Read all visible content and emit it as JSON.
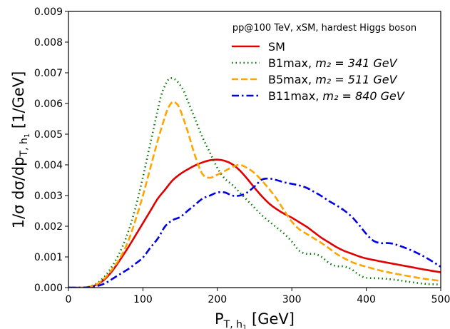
{
  "chart_data": {
    "type": "line",
    "title": "",
    "legend_title": "pp@100 TeV, xSM, hardest Higgs boson",
    "legend_position": "top-right",
    "xlabel": "P_{T,h_1} [GeV]",
    "ylabel": "1/σ dσ/dp_{T,h_1} [1/GeV]",
    "xlim": [
      0,
      500
    ],
    "ylim": [
      0,
      0.009
    ],
    "xticks": [
      0,
      100,
      200,
      300,
      400,
      500
    ],
    "xtick_labels": [
      "0",
      "100",
      "200",
      "300",
      "400",
      "500"
    ],
    "yticks": [
      0,
      0.001,
      0.002,
      0.003,
      0.004,
      0.005,
      0.006,
      0.007,
      0.008,
      0.009
    ],
    "ytick_labels": [
      "0.000",
      "0.001",
      "0.002",
      "0.003",
      "0.004",
      "0.005",
      "0.006",
      "0.007",
      "0.008",
      "0.009"
    ],
    "grid": false,
    "series": [
      {
        "name": "SM",
        "color": "#e00000",
        "dash": "solid",
        "x": [
          0,
          20,
          30,
          40,
          50,
          60,
          70,
          80,
          90,
          100,
          110,
          120,
          130,
          140,
          150,
          160,
          170,
          180,
          190,
          200,
          210,
          220,
          230,
          240,
          250,
          260,
          270,
          280,
          290,
          300,
          310,
          320,
          330,
          340,
          350,
          360,
          370,
          380,
          390,
          400,
          420,
          440,
          460,
          480,
          500
        ],
        "y": [
          0,
          0,
          3e-05,
          0.00012,
          0.0003,
          0.00058,
          0.00093,
          0.0013,
          0.0017,
          0.0021,
          0.0025,
          0.0029,
          0.0032,
          0.0035,
          0.0037,
          0.00385,
          0.00398,
          0.00408,
          0.00415,
          0.00417,
          0.00413,
          0.00402,
          0.00382,
          0.00355,
          0.00325,
          0.00297,
          0.00273,
          0.00255,
          0.0024,
          0.00228,
          0.00213,
          0.00198,
          0.0018,
          0.00162,
          0.00147,
          0.00132,
          0.0012,
          0.00111,
          0.00102,
          0.00095,
          0.00085,
          0.00076,
          0.00067,
          0.00058,
          0.0005
        ]
      },
      {
        "name_prefix": "B1max, ",
        "name_math": "m₂ = 341 GeV",
        "color": "#007500",
        "dash": "dotted",
        "x": [
          0,
          20,
          30,
          40,
          50,
          60,
          70,
          80,
          90,
          100,
          110,
          120,
          125,
          130,
          135,
          140,
          145,
          150,
          155,
          160,
          170,
          180,
          190,
          200,
          210,
          220,
          230,
          240,
          250,
          260,
          270,
          280,
          290,
          300,
          310,
          320,
          330,
          340,
          350,
          360,
          370,
          380,
          390,
          400,
          420,
          440,
          460,
          480,
          500
        ],
        "y": [
          0,
          0,
          5e-05,
          0.00017,
          0.0004,
          0.00075,
          0.0012,
          0.0018,
          0.0026,
          0.0036,
          0.0047,
          0.0058,
          0.0063,
          0.0066,
          0.0068,
          0.00682,
          0.00675,
          0.0066,
          0.0064,
          0.0061,
          0.0055,
          0.0049,
          0.0044,
          0.0039,
          0.00355,
          0.00335,
          0.0031,
          0.00285,
          0.0026,
          0.00235,
          0.00215,
          0.00195,
          0.00175,
          0.0015,
          0.0012,
          0.0011,
          0.0011,
          0.001,
          0.0008,
          0.0007,
          0.00069,
          0.0006,
          0.00042,
          0.00032,
          0.0003,
          0.00025,
          0.00018,
          0.00012,
          0.0001
        ]
      },
      {
        "name_prefix": "B5max, ",
        "name_math": "m₂ = 511 GeV",
        "color": "#ffa500",
        "dash": "dashed",
        "x": [
          0,
          20,
          30,
          40,
          50,
          60,
          70,
          80,
          90,
          100,
          110,
          120,
          130,
          135,
          140,
          145,
          150,
          160,
          170,
          180,
          190,
          200,
          210,
          220,
          230,
          240,
          250,
          260,
          270,
          280,
          290,
          300,
          310,
          320,
          330,
          340,
          350,
          360,
          370,
          380,
          390,
          400,
          420,
          440,
          460,
          480,
          500
        ],
        "y": [
          0,
          0,
          4e-05,
          0.00014,
          0.00034,
          0.00064,
          0.001,
          0.0015,
          0.0022,
          0.003,
          0.0039,
          0.0048,
          0.0056,
          0.0059,
          0.00605,
          0.006,
          0.0058,
          0.0051,
          0.0043,
          0.0037,
          0.00358,
          0.00368,
          0.0038,
          0.00393,
          0.004,
          0.0039,
          0.00373,
          0.00348,
          0.0032,
          0.00288,
          0.0025,
          0.00215,
          0.0019,
          0.00175,
          0.0016,
          0.00145,
          0.00128,
          0.0011,
          0.00096,
          0.00084,
          0.00075,
          0.00068,
          0.00055,
          0.00045,
          0.00036,
          0.00028,
          0.00022
        ]
      },
      {
        "name_prefix": "B11max, ",
        "name_math": "m₂ = 840 GeV",
        "color": "#0000e6",
        "dash": "dashdot",
        "x": [
          0,
          20,
          30,
          40,
          50,
          60,
          70,
          80,
          90,
          100,
          110,
          120,
          130,
          140,
          150,
          160,
          170,
          180,
          190,
          200,
          210,
          220,
          230,
          240,
          250,
          260,
          270,
          280,
          290,
          300,
          310,
          320,
          330,
          340,
          350,
          360,
          370,
          380,
          390,
          400,
          410,
          420,
          430,
          440,
          460,
          480,
          500
        ],
        "y": [
          0,
          0,
          2e-05,
          6e-05,
          0.00015,
          0.0003,
          0.00045,
          0.0006,
          0.00078,
          0.00098,
          0.0013,
          0.0016,
          0.002,
          0.0022,
          0.0023,
          0.0025,
          0.0027,
          0.0029,
          0.003,
          0.0031,
          0.0031,
          0.003,
          0.003,
          0.0031,
          0.0033,
          0.00352,
          0.00355,
          0.0035,
          0.00343,
          0.00338,
          0.00333,
          0.00325,
          0.00312,
          0.00298,
          0.00282,
          0.00268,
          0.00252,
          0.00232,
          0.00205,
          0.00175,
          0.00152,
          0.00145,
          0.00145,
          0.0014,
          0.00122,
          0.00098,
          0.00068
        ]
      }
    ]
  }
}
